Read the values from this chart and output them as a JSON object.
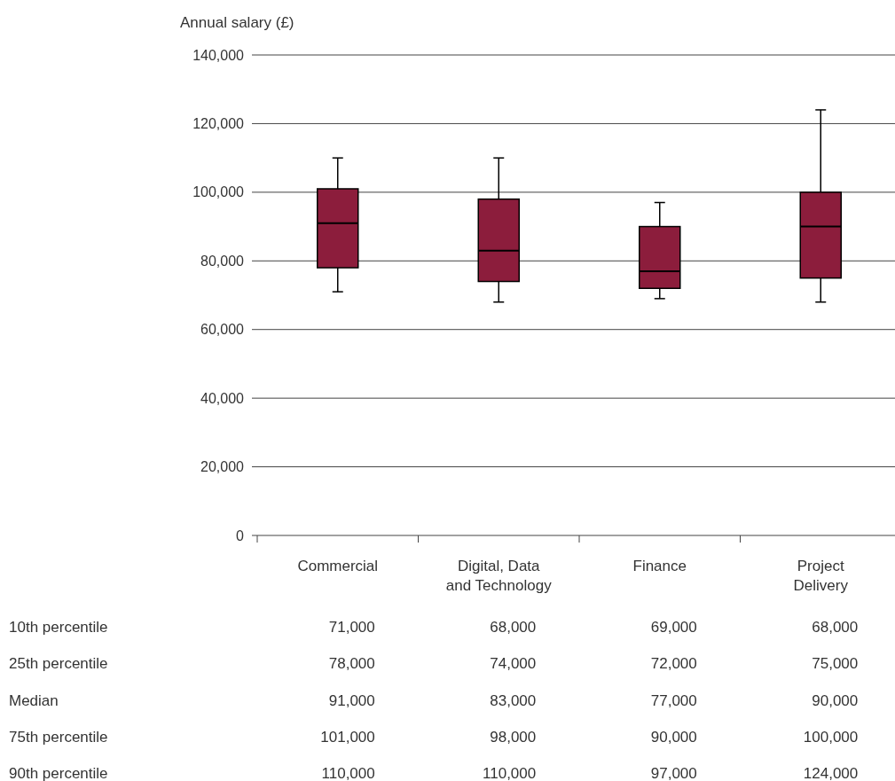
{
  "chart_data": {
    "type": "box",
    "ylabel": "Annual salary (£)",
    "categories": [
      "Commercial",
      "Digital, Data and Technology",
      "Finance",
      "Project Delivery"
    ],
    "color": "#8c1d3c",
    "boxes": [
      {
        "low": 71000,
        "q1": 78000,
        "median": 91000,
        "q3": 101000,
        "high": 110000
      },
      {
        "low": 68000,
        "q1": 74000,
        "median": 83000,
        "q3": 98000,
        "high": 110000
      },
      {
        "low": 69000,
        "q1": 72000,
        "median": 77000,
        "q3": 90000,
        "high": 97000
      },
      {
        "low": 68000,
        "q1": 75000,
        "median": 90000,
        "q3": 100000,
        "high": 124000
      }
    ],
    "ylim": [
      0,
      140000
    ],
    "yticks": [
      {
        "value": 0,
        "label": "0"
      },
      {
        "value": 20000,
        "label": "20,000"
      },
      {
        "value": 40000,
        "label": "40,000"
      },
      {
        "value": 60000,
        "label": "60,000"
      },
      {
        "value": 80000,
        "label": "80,000"
      },
      {
        "value": 100000,
        "label": "100,000"
      },
      {
        "value": 120000,
        "label": "120,000"
      },
      {
        "value": 140000,
        "label": "140,000"
      }
    ],
    "grid": "y",
    "value_labels": [
      [
        "71,000",
        "78,000",
        "91,000",
        "101,000",
        "110,000"
      ],
      [
        "68,000",
        "74,000",
        "83,000",
        "98,000",
        "110,000"
      ],
      [
        "69,000",
        "72,000",
        "77,000",
        "90,000",
        "97,000"
      ],
      [
        "68,000",
        "75,000",
        "90,000",
        "100,000",
        "124,000"
      ]
    ],
    "annotations": [
      "10th percentile",
      "25th percentile",
      "Median",
      "75th percentile",
      "90th percentile"
    ]
  }
}
